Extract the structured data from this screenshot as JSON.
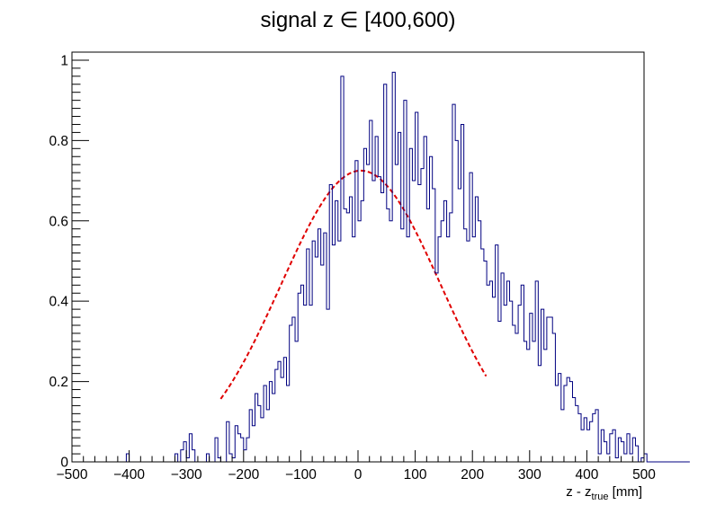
{
  "chart_data": {
    "type": "histogram",
    "title": "signal z ∈ [400,600)",
    "xlabel_main": "z - z",
    "xlabel_sub": "true",
    "xlabel_unit": " [mm]",
    "ylabel": "",
    "xlim": [
      -500,
      500
    ],
    "ylim": [
      0,
      1.02
    ],
    "x_ticks": [
      "−500",
      "−400",
      "−300",
      "−200",
      "−100",
      "0",
      "100",
      "200",
      "300",
      "400",
      "500"
    ],
    "x_tick_values": [
      -500,
      -400,
      -300,
      -200,
      -100,
      0,
      100,
      200,
      300,
      400,
      500
    ],
    "y_ticks": [
      "0",
      "0.2",
      "0.4",
      "0.6",
      "0.8",
      "1"
    ],
    "y_tick_values": [
      0,
      0.2,
      0.4,
      0.6,
      0.8,
      1.0
    ],
    "grid": false,
    "colors": {
      "histogram": "#000080",
      "fit": "#e00000",
      "frame": "#000000"
    },
    "histogram": {
      "bin_start": -500,
      "bin_width": 5,
      "values": [
        0,
        0,
        0,
        0,
        0,
        0,
        0,
        0,
        0,
        0,
        0,
        0,
        0,
        0,
        0,
        0,
        0,
        0,
        0,
        0.02,
        0,
        0,
        0,
        0,
        0,
        0,
        0,
        0,
        0,
        0,
        0,
        0,
        0,
        0,
        0,
        0,
        0.02,
        0,
        0.03,
        0.05,
        0.01,
        0.07,
        0.03,
        0,
        0,
        0,
        0,
        0.02,
        0,
        0,
        0.06,
        0.01,
        0,
        0,
        0.1,
        0.02,
        0.01,
        0.09,
        0.07,
        0.06,
        0.03,
        0.06,
        0.13,
        0.09,
        0.17,
        0.14,
        0.11,
        0.19,
        0.13,
        0.2,
        0.17,
        0.23,
        0.25,
        0.21,
        0.26,
        0.19,
        0.34,
        0.36,
        0.3,
        0.42,
        0.44,
        0.39,
        0.53,
        0.39,
        0.55,
        0.51,
        0.58,
        0.49,
        0.57,
        0.38,
        0.69,
        0.54,
        0.65,
        0.55,
        0.96,
        0.63,
        0.62,
        0.66,
        0.56,
        0.75,
        0.6,
        0.65,
        0.78,
        0.74,
        0.85,
        0.7,
        0.81,
        0.71,
        0.67,
        0.94,
        0.63,
        0.6,
        0.97,
        0.74,
        0.82,
        0.58,
        0.9,
        0.56,
        0.78,
        0.7,
        0.87,
        0.69,
        0.73,
        0.81,
        0.63,
        0.76,
        0.68,
        0.47,
        0.56,
        0.6,
        0.65,
        0.56,
        0.62,
        0.89,
        0.8,
        0.68,
        0.84,
        0.58,
        0.55,
        0.72,
        0.56,
        0.66,
        0.6,
        0.53,
        0.5,
        0.44,
        0.45,
        0.41,
        0.54,
        0.35,
        0.47,
        0.39,
        0.45,
        0.4,
        0.34,
        0.32,
        0.39,
        0.44,
        0.3,
        0.28,
        0.37,
        0.3,
        0.45,
        0.24,
        0.38,
        0.28,
        0.36,
        0.36,
        0.32,
        0.19,
        0.22,
        0.13,
        0.19,
        0.21,
        0.2,
        0.16,
        0.14,
        0.12,
        0.08,
        0.11,
        0.08,
        0.1,
        0.12,
        0.13,
        0.02,
        0.08,
        0.05,
        0.02,
        0.07,
        0.08,
        0.01,
        0.06,
        0.05,
        0.02,
        0.07,
        0.02,
        0.06,
        0.04,
        0,
        0.01,
        0.02,
        0,
        0,
        0,
        0,
        0,
        0,
        0,
        0,
        0,
        0,
        0,
        0,
        0,
        0,
        0
      ]
    },
    "fit": {
      "type": "gaussian",
      "amplitude": 0.725,
      "mean": 5,
      "sigma": 140,
      "x_range": [
        -240,
        225
      ]
    }
  }
}
